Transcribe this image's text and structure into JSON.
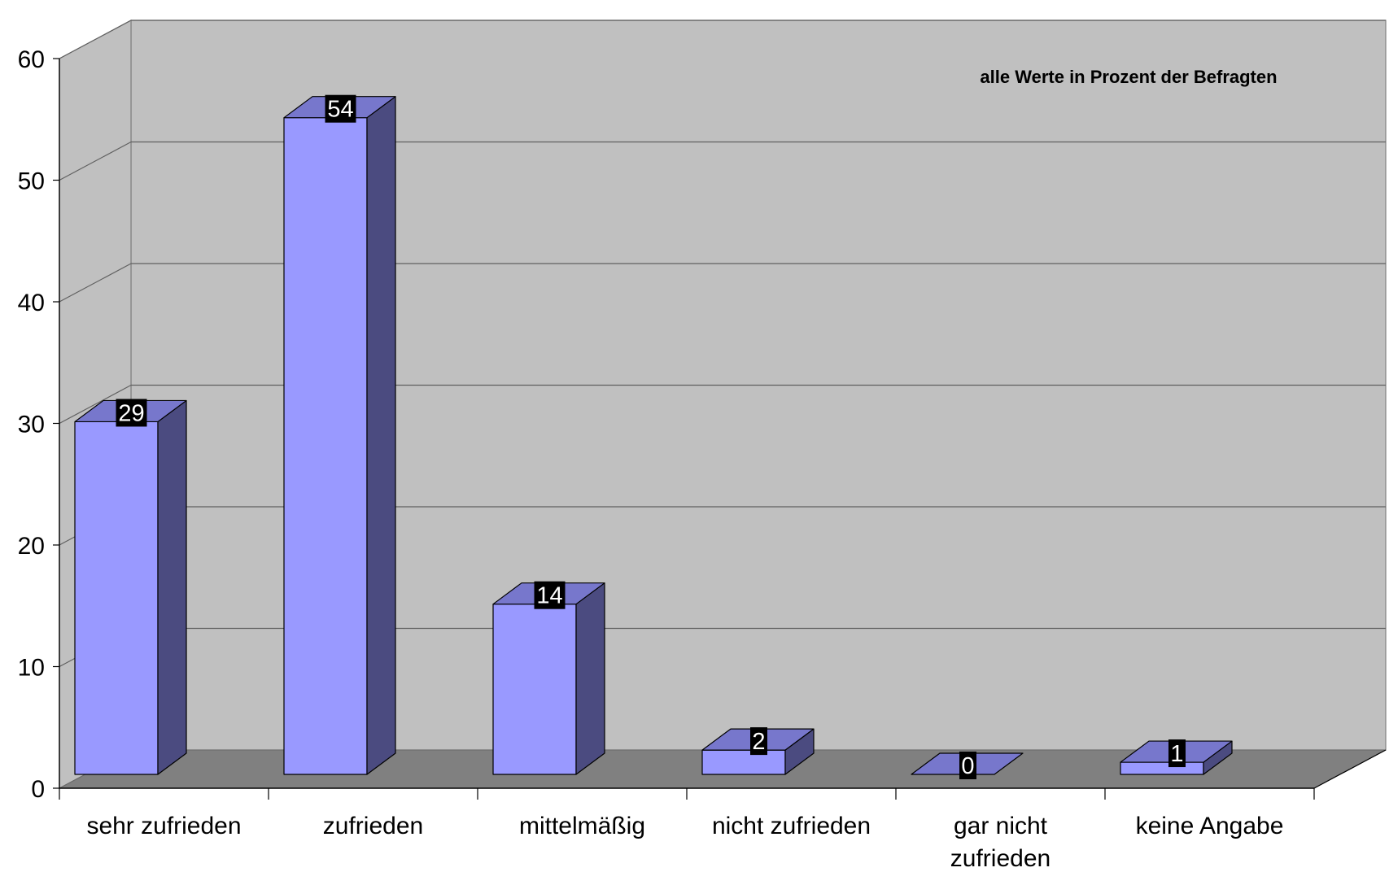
{
  "chart_data": {
    "type": "bar",
    "annotation": "alle Werte in Prozent der Befragten",
    "categories": [
      [
        "sehr zufrieden"
      ],
      [
        "zufrieden"
      ],
      [
        "mittelmäßig"
      ],
      [
        "nicht zufrieden"
      ],
      [
        "gar nicht",
        "zufrieden"
      ],
      [
        "keine Angabe"
      ]
    ],
    "values": [
      29,
      54,
      14,
      2,
      0,
      1
    ],
    "data_labels": [
      "29",
      "54",
      "14",
      "2",
      "0",
      "1"
    ],
    "ylim": [
      0,
      60
    ],
    "yticks": [
      "0",
      "10",
      "20",
      "30",
      "40",
      "50",
      "60"
    ],
    "grid": true,
    "three_d": true,
    "colors": {
      "bar_front": "#9999ff",
      "bar_top": "#7777cc",
      "bar_side": "#4b4b80",
      "back_wall": "#c0c0c0",
      "floor": "#808080",
      "grid": "#606060",
      "label_bg": "#000000",
      "label_text": "#ffffff"
    }
  }
}
